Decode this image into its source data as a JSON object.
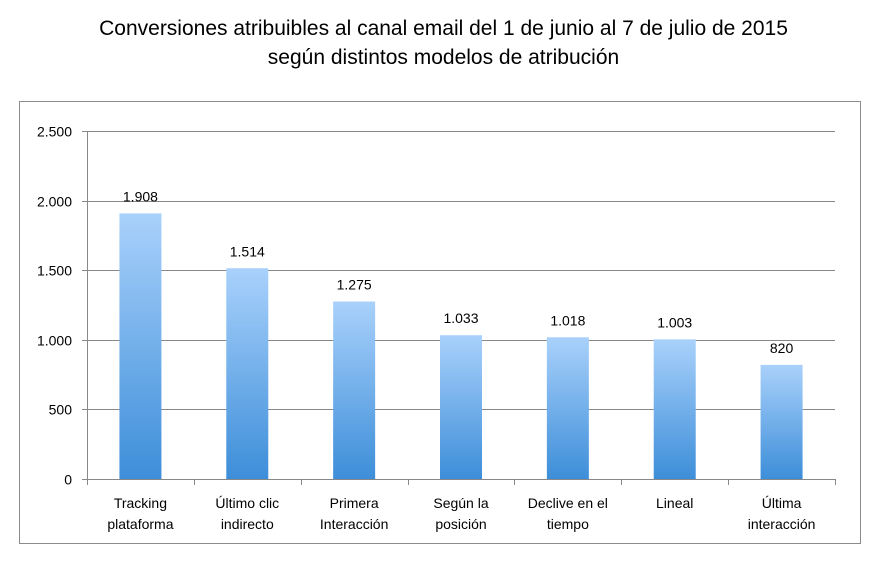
{
  "chart_data": {
    "type": "bar",
    "title_lines": [
      "Conversiones atribuibles al canal email del 1 de junio al 7 de julio de 2015",
      "según distintos modelos de atribución"
    ],
    "categories": [
      [
        "Tracking",
        "plataforma"
      ],
      [
        "Último clic",
        "indirecto"
      ],
      [
        "Primera",
        "Interacción"
      ],
      [
        "Según la",
        "posición"
      ],
      [
        "Declive en el",
        "tiempo"
      ],
      [
        "Lineal"
      ],
      [
        "Última",
        "interacción"
      ]
    ],
    "values": [
      1908,
      1514,
      1275,
      1033,
      1018,
      1003,
      820
    ],
    "data_labels": [
      "1.908",
      "1.514",
      "1.275",
      "1.033",
      "1.018",
      "1.003",
      "820"
    ],
    "yticks": [
      0,
      500,
      1000,
      1500,
      2000,
      2500
    ],
    "ytick_labels": [
      "0",
      "500",
      "1.000",
      "1.500",
      "2.000",
      "2.500"
    ],
    "ylim": [
      0,
      2500
    ],
    "grid": true,
    "legend": "none",
    "colors": {
      "bar_top": "#a9d1fb",
      "bar_bottom": "#3d8ed9",
      "grid": "#888888",
      "frame": "#888888"
    }
  }
}
